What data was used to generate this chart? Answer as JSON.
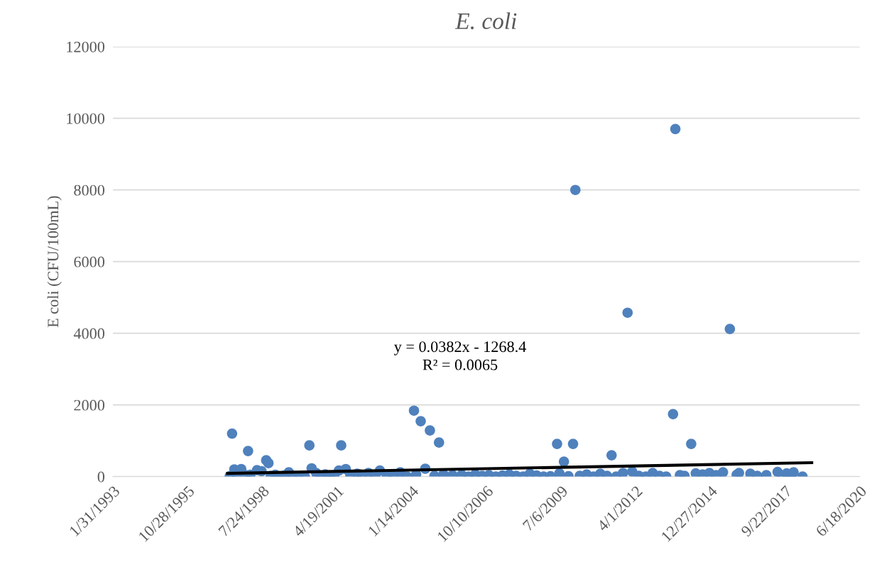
{
  "chart_data": {
    "type": "scatter",
    "title": "E. coli",
    "ylabel": "E coli (CFU/100mL)",
    "xlim": [
      "1993-01-31",
      "2020-06-18"
    ],
    "xticks": [
      {
        "value": "1993-01-31",
        "label": "1/31/1993"
      },
      {
        "value": "1995-10-28",
        "label": "10/28/1995"
      },
      {
        "value": "1998-07-24",
        "label": "7/24/1998"
      },
      {
        "value": "2001-04-19",
        "label": "4/19/2001"
      },
      {
        "value": "2004-01-14",
        "label": "1/14/2004"
      },
      {
        "value": "2006-10-10",
        "label": "10/10/2006"
      },
      {
        "value": "2009-07-06",
        "label": "7/6/2009"
      },
      {
        "value": "2012-04-01",
        "label": "4/1/2012"
      },
      {
        "value": "2014-12-27",
        "label": "12/27/2014"
      },
      {
        "value": "2017-09-22",
        "label": "9/22/2017"
      },
      {
        "value": "2020-06-18",
        "label": "6/18/2020"
      }
    ],
    "ylim": [
      0,
      12000
    ],
    "yticks": [
      0,
      2000,
      4000,
      6000,
      8000,
      10000,
      12000
    ],
    "grid": "y",
    "legend": false,
    "marker": "circle",
    "annotations": [
      "y = 0.0382x - 1268.4",
      "R² = 0.0065"
    ],
    "series": [
      {
        "color": "#4f81bd",
        "x": [
          "1997-06",
          "1998-01",
          "1998-09",
          "1998-10",
          "1998-05",
          "2000-04",
          "2001-06",
          "2004-02",
          "2004-05",
          "2004-09",
          "2005-01",
          "2004-07",
          "2009-05",
          "2010-01",
          "2009-12",
          "2009-08",
          "2011-05",
          "2011-12",
          "2013-09",
          "2013-08",
          "2014-04",
          "2015-09",
          "2016-01",
          "1997-05",
          "1997-07",
          "1997-08",
          "1997-10",
          "1997-12",
          "1998-02",
          "1998-07",
          "1998-11",
          "1999-01",
          "1999-03",
          "1999-05",
          "1999-07",
          "1999-09",
          "1999-11",
          "2000-02",
          "2000-05",
          "2000-07",
          "2000-09",
          "2000-11",
          "2001-01",
          "2001-03",
          "2001-05",
          "2001-08",
          "2001-10",
          "2002-01",
          "2002-03",
          "2002-06",
          "2002-09",
          "2002-11",
          "2003-02",
          "2003-05",
          "2003-08",
          "2003-11",
          "2004-03",
          "2004-11",
          "2005-03",
          "2005-07",
          "2005-11",
          "2006-02",
          "2006-05",
          "2006-08",
          "2006-11",
          "2007-02",
          "2007-05",
          "2007-08",
          "2007-11",
          "2008-02",
          "2008-05",
          "2008-08",
          "2008-11",
          "2009-02",
          "2009-06",
          "2009-10",
          "2010-03",
          "2010-06",
          "2010-09",
          "2010-12",
          "2011-03",
          "2011-07",
          "2011-10",
          "2012-02",
          "2012-05",
          "2012-08",
          "2012-11",
          "2013-02",
          "2013-05",
          "2013-11",
          "2014-01",
          "2014-06",
          "2014-09",
          "2014-12",
          "2015-03",
          "2015-06",
          "2015-12",
          "2016-06",
          "2016-09",
          "2017-01",
          "2017-06",
          "2017-08",
          "2017-10",
          "2017-12",
          "2018-01",
          "2018-05"
        ],
        "values": [
          1200,
          713,
          455,
          376,
          180,
          871,
          871,
          1840,
          1545,
          1287,
          950,
          220,
          911,
          8000,
          911,
          416,
          594,
          4574,
          9700,
          1743,
          911,
          4119,
          100,
          10,
          200,
          60,
          210,
          40,
          50,
          150,
          20,
          50,
          0,
          30,
          120,
          10,
          0,
          0,
          230,
          100,
          20,
          60,
          30,
          0,
          170,
          210,
          50,
          80,
          0,
          100,
          20,
          170,
          30,
          50,
          120,
          0,
          60,
          20,
          60,
          40,
          50,
          0,
          60,
          20,
          40,
          0,
          30,
          60,
          20,
          0,
          80,
          30,
          0,
          10,
          90,
          10,
          20,
          60,
          0,
          80,
          20,
          0,
          100,
          140,
          20,
          0,
          100,
          20,
          0,
          40,
          20,
          90,
          60,
          100,
          40,
          120,
          50,
          80,
          20,
          40,
          130,
          20,
          90,
          20,
          120,
          0
        ]
      },
      {
        "type": "line",
        "color": "#000000",
        "line_style": "solid",
        "marker": "none",
        "x": [
          "1997-04",
          "2018-09"
        ],
        "values": [
          88,
          387
        ]
      }
    ]
  }
}
